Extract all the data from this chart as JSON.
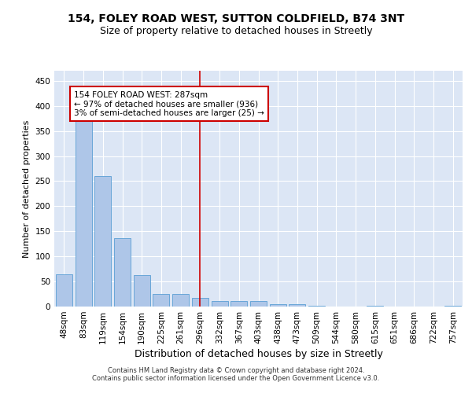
{
  "title1": "154, FOLEY ROAD WEST, SUTTON COLDFIELD, B74 3NT",
  "title2": "Size of property relative to detached houses in Streetly",
  "xlabel": "Distribution of detached houses by size in Streetly",
  "ylabel": "Number of detached properties",
  "footer1": "Contains HM Land Registry data © Crown copyright and database right 2024.",
  "footer2": "Contains public sector information licensed under the Open Government Licence v3.0.",
  "categories": [
    "48sqm",
    "83sqm",
    "119sqm",
    "154sqm",
    "190sqm",
    "225sqm",
    "261sqm",
    "296sqm",
    "332sqm",
    "367sqm",
    "403sqm",
    "438sqm",
    "473sqm",
    "509sqm",
    "544sqm",
    "580sqm",
    "615sqm",
    "651sqm",
    "686sqm",
    "722sqm",
    "757sqm"
  ],
  "values": [
    65,
    375,
    260,
    137,
    62,
    25,
    25,
    18,
    11,
    11,
    11,
    5,
    5,
    2,
    0,
    0,
    2,
    0,
    0,
    0,
    2
  ],
  "bar_color": "#aec6e8",
  "bar_edge_color": "#5a9fd4",
  "vline_x_index": 7,
  "vline_color": "#cc0000",
  "annotation_line1": "154 FOLEY ROAD WEST: 287sqm",
  "annotation_line2": "← 97% of detached houses are smaller (936)",
  "annotation_line3": "3% of semi-detached houses are larger (25) →",
  "annotation_box_color": "#cc0000",
  "ylim": [
    0,
    470
  ],
  "yticks": [
    0,
    50,
    100,
    150,
    200,
    250,
    300,
    350,
    400,
    450
  ],
  "plot_bg_color": "#dce6f5",
  "grid_color": "#ffffff",
  "title1_fontsize": 10,
  "title2_fontsize": 9,
  "xlabel_fontsize": 9,
  "ylabel_fontsize": 8,
  "tick_fontsize": 7.5,
  "footer_fontsize": 6
}
